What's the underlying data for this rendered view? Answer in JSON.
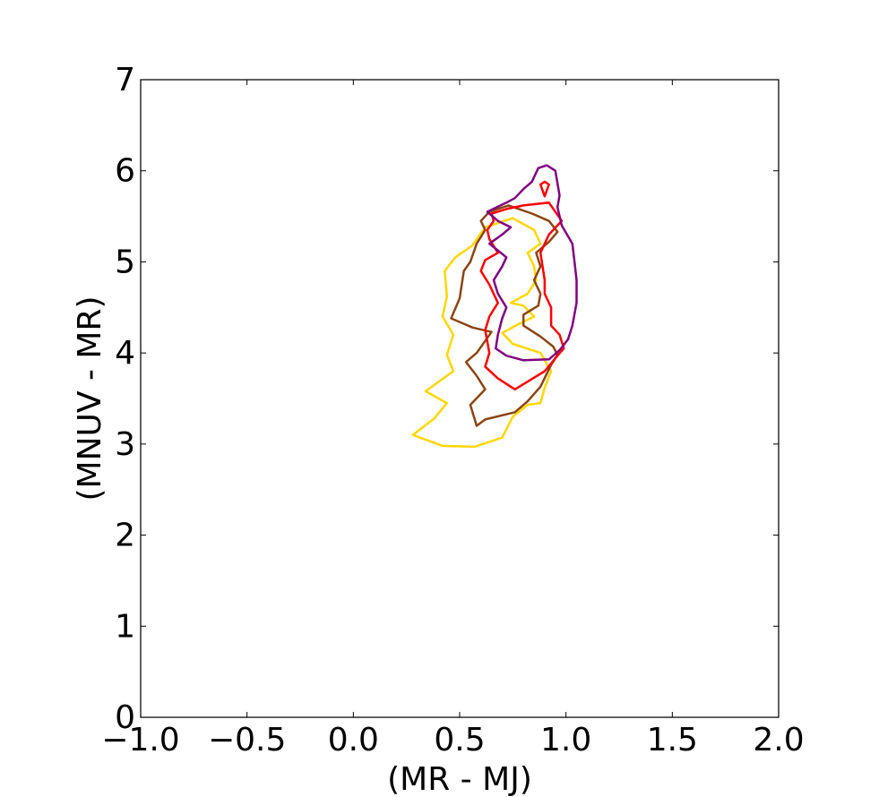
{
  "chart_data": {
    "type": "line",
    "title": "",
    "xlabel": "(MR - MJ)",
    "ylabel": "(MNUV - MR)",
    "xlim": [
      -1.0,
      2.0
    ],
    "ylim": [
      0,
      7
    ],
    "x_ticks": [
      -1.0,
      -0.5,
      0.0,
      0.5,
      1.0,
      1.5,
      2.0
    ],
    "x_tick_labels": [
      "−1.0",
      "−0.5",
      "0.0",
      "0.5",
      "1.0",
      "1.5",
      "2.0"
    ],
    "y_ticks": [
      0,
      1,
      2,
      3,
      4,
      5,
      6,
      7
    ],
    "y_tick_labels": [
      "0",
      "1",
      "2",
      "3",
      "4",
      "5",
      "6",
      "7"
    ],
    "grid": false,
    "legend": "none",
    "series": [
      {
        "color": "#FFD700",
        "points": [
          [
            0.28,
            3.1
          ],
          [
            0.42,
            2.98
          ],
          [
            0.57,
            2.97
          ],
          [
            0.7,
            3.07
          ],
          [
            0.75,
            3.3
          ],
          [
            0.82,
            3.43
          ],
          [
            0.88,
            3.45
          ],
          [
            0.9,
            3.62
          ],
          [
            0.93,
            3.8
          ],
          [
            0.88,
            4.0
          ],
          [
            0.75,
            4.1
          ],
          [
            0.7,
            4.22
          ],
          [
            0.78,
            4.32
          ],
          [
            0.85,
            4.4
          ],
          [
            0.8,
            4.52
          ],
          [
            0.74,
            4.55
          ],
          [
            0.82,
            4.65
          ],
          [
            0.86,
            4.8
          ],
          [
            0.85,
            4.95
          ],
          [
            0.82,
            5.1
          ],
          [
            0.88,
            5.2
          ],
          [
            0.85,
            5.35
          ],
          [
            0.75,
            5.48
          ],
          [
            0.62,
            5.38
          ],
          [
            0.56,
            5.18
          ],
          [
            0.48,
            5.05
          ],
          [
            0.43,
            4.9
          ],
          [
            0.44,
            4.62
          ],
          [
            0.42,
            4.4
          ],
          [
            0.47,
            4.2
          ],
          [
            0.44,
            3.98
          ],
          [
            0.47,
            3.8
          ],
          [
            0.34,
            3.58
          ],
          [
            0.44,
            3.45
          ],
          [
            0.38,
            3.28
          ],
          [
            0.28,
            3.1
          ]
        ]
      },
      {
        "color": "#8B4513",
        "points": [
          [
            0.58,
            3.2
          ],
          [
            0.62,
            3.27
          ],
          [
            0.76,
            3.35
          ],
          [
            0.82,
            3.47
          ],
          [
            0.88,
            3.63
          ],
          [
            0.93,
            3.87
          ],
          [
            0.96,
            3.98
          ],
          [
            0.94,
            4.07
          ],
          [
            0.88,
            4.18
          ],
          [
            0.8,
            4.3
          ],
          [
            0.8,
            4.42
          ],
          [
            0.87,
            4.52
          ],
          [
            0.88,
            4.65
          ],
          [
            0.85,
            4.8
          ],
          [
            0.88,
            4.95
          ],
          [
            0.86,
            5.1
          ],
          [
            0.92,
            5.22
          ],
          [
            0.96,
            5.33
          ],
          [
            0.92,
            5.45
          ],
          [
            0.84,
            5.53
          ],
          [
            0.73,
            5.62
          ],
          [
            0.64,
            5.55
          ],
          [
            0.6,
            5.45
          ],
          [
            0.62,
            5.35
          ],
          [
            0.58,
            5.2
          ],
          [
            0.55,
            5.0
          ],
          [
            0.52,
            4.9
          ],
          [
            0.5,
            4.6
          ],
          [
            0.46,
            4.38
          ],
          [
            0.56,
            4.28
          ],
          [
            0.65,
            4.23
          ],
          [
            0.58,
            4.0
          ],
          [
            0.53,
            3.9
          ],
          [
            0.58,
            3.75
          ],
          [
            0.62,
            3.6
          ],
          [
            0.55,
            3.43
          ],
          [
            0.58,
            3.2
          ]
        ]
      },
      {
        "color": "#FF0000",
        "points": [
          [
            0.76,
            3.6
          ],
          [
            0.9,
            3.8
          ],
          [
            0.96,
            3.97
          ],
          [
            0.99,
            4.05
          ],
          [
            0.97,
            4.2
          ],
          [
            0.93,
            4.3
          ],
          [
            0.93,
            4.5
          ],
          [
            0.9,
            4.65
          ],
          [
            0.9,
            4.8
          ],
          [
            0.88,
            5.1
          ],
          [
            0.92,
            5.3
          ],
          [
            0.98,
            5.45
          ],
          [
            0.92,
            5.65
          ],
          [
            0.8,
            5.62
          ],
          [
            0.72,
            5.58
          ],
          [
            0.65,
            5.53
          ],
          [
            0.66,
            5.45
          ],
          [
            0.63,
            5.35
          ],
          [
            0.64,
            5.25
          ],
          [
            0.68,
            5.1
          ],
          [
            0.62,
            5.02
          ],
          [
            0.6,
            4.9
          ],
          [
            0.64,
            4.75
          ],
          [
            0.68,
            4.55
          ],
          [
            0.64,
            4.4
          ],
          [
            0.62,
            4.25
          ],
          [
            0.64,
            4.0
          ],
          [
            0.62,
            3.85
          ],
          [
            0.68,
            3.72
          ],
          [
            0.76,
            3.6
          ]
        ]
      },
      {
        "color": "#FF0000",
        "points": [
          [
            0.9,
            5.72
          ],
          [
            0.92,
            5.85
          ],
          [
            0.9,
            5.88
          ],
          [
            0.88,
            5.85
          ],
          [
            0.9,
            5.72
          ]
        ]
      },
      {
        "color": "#800080",
        "points": [
          [
            0.8,
            3.92
          ],
          [
            0.92,
            3.93
          ],
          [
            0.97,
            4.03
          ],
          [
            1.01,
            4.15
          ],
          [
            1.03,
            4.3
          ],
          [
            1.05,
            4.55
          ],
          [
            1.05,
            4.8
          ],
          [
            1.04,
            5.0
          ],
          [
            1.03,
            5.2
          ],
          [
            0.98,
            5.4
          ],
          [
            0.96,
            5.6
          ],
          [
            0.97,
            5.73
          ],
          [
            0.95,
            6.0
          ],
          [
            0.91,
            6.06
          ],
          [
            0.87,
            6.03
          ],
          [
            0.84,
            5.88
          ],
          [
            0.8,
            5.8
          ],
          [
            0.76,
            5.7
          ],
          [
            0.72,
            5.65
          ],
          [
            0.63,
            5.55
          ],
          [
            0.68,
            5.45
          ],
          [
            0.74,
            5.38
          ],
          [
            0.7,
            5.3
          ],
          [
            0.64,
            5.2
          ],
          [
            0.72,
            5.05
          ],
          [
            0.7,
            4.95
          ],
          [
            0.66,
            4.8
          ],
          [
            0.68,
            4.65
          ],
          [
            0.72,
            4.5
          ],
          [
            0.7,
            4.38
          ],
          [
            0.68,
            4.2
          ],
          [
            0.67,
            4.05
          ],
          [
            0.72,
            3.97
          ],
          [
            0.8,
            3.92
          ]
        ]
      }
    ]
  }
}
